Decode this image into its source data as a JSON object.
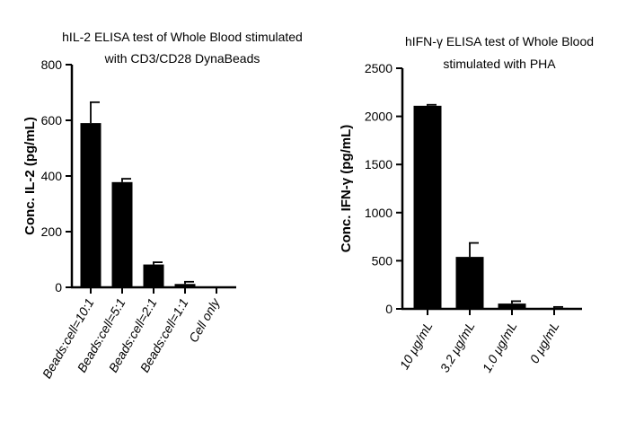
{
  "chart_data": [
    {
      "type": "bar",
      "title_lines": [
        "hIL-2 ELISA test of Whole Blood stimulated",
        "with CD3/CD28 DynaBeads"
      ],
      "ylabel": "Conc. IL-2 (pg/mL)",
      "xlabel": "",
      "ylim": [
        0,
        800
      ],
      "yticks": [
        0,
        200,
        400,
        600,
        800
      ],
      "categories": [
        "Beads:cell=10:1",
        "Beads:cell=5:1",
        "Beads:cell=2:1",
        "Beads:cell=1:1",
        "Cell only"
      ],
      "values": [
        590,
        378,
        82,
        12,
        0
      ],
      "errors": [
        75,
        12,
        8,
        8,
        0
      ],
      "bar_color": "#000000",
      "grid": false
    },
    {
      "type": "bar",
      "title_lines": [
        "hIFN-γ ELISA test of Whole Blood",
        "stimulated with PHA"
      ],
      "ylabel": "Conc. IFN-γ (pg/mL)",
      "xlabel": "",
      "ylim": [
        0,
        2500
      ],
      "yticks": [
        0,
        500,
        1000,
        1500,
        2000,
        2500
      ],
      "categories": [
        "10 μg/mL",
        "3.2 μg/mL",
        "1.0 μg/mL",
        "0 μg/mL"
      ],
      "values": [
        2110,
        540,
        55,
        10
      ],
      "errors": [
        10,
        145,
        25,
        10
      ],
      "bar_color": "#000000",
      "grid": false
    }
  ]
}
